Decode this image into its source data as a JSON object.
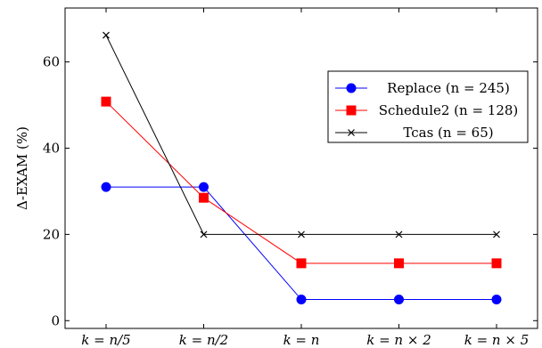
{
  "chart_data": {
    "type": "line",
    "ylabel": "Δ-EXAM (%)",
    "categories": [
      "k = n/5",
      "k = n/2",
      "k = n",
      "k = n × 2",
      "k = n × 5"
    ],
    "yticks": [
      0,
      20,
      40,
      60
    ],
    "ylim": [
      -1.8,
      72.5
    ],
    "grid": false,
    "legend_position": "top-right",
    "series": [
      {
        "name": "Replace (n = 245)",
        "color": "#0000ff",
        "marker": "circle",
        "values": [
          31,
          31,
          4.9,
          4.9,
          4.9
        ]
      },
      {
        "name": "Schedule2 (n = 128)",
        "color": "#ff0000",
        "marker": "square",
        "values": [
          50.8,
          28.5,
          13.3,
          13.3,
          13.3
        ]
      },
      {
        "name": "Tcas (n = 65)",
        "color": "#000000",
        "marker": "x",
        "values": [
          66.2,
          20,
          20,
          20,
          20
        ]
      }
    ]
  }
}
